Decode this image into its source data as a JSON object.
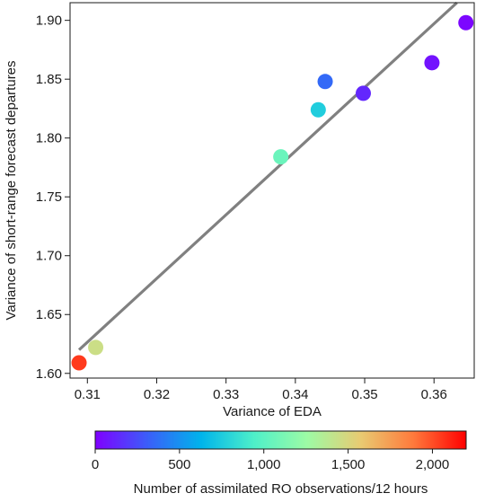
{
  "chart_data": {
    "type": "scatter",
    "xlabel": "Variance of EDA",
    "ylabel": "Variance of short-range forecast departures",
    "xlim": [
      0.3075,
      0.3658
    ],
    "ylim": [
      1.596,
      1.915
    ],
    "x_ticks": [
      0.31,
      0.32,
      0.33,
      0.34,
      0.35,
      0.36
    ],
    "x_tick_labels": [
      "0.31",
      "0.32",
      "0.33",
      "0.34",
      "0.35",
      "0.36"
    ],
    "y_ticks": [
      1.6,
      1.65,
      1.7,
      1.75,
      1.8,
      1.85,
      1.9
    ],
    "y_tick_labels": [
      "1.60",
      "1.65",
      "1.70",
      "1.75",
      "1.80",
      "1.85",
      "1.90"
    ],
    "grid": false,
    "points": [
      {
        "x": 0.3088,
        "y": 1.609,
        "ro_obs": 2050
      },
      {
        "x": 0.3112,
        "y": 1.622,
        "ro_obs": 1450
      },
      {
        "x": 0.3379,
        "y": 1.784,
        "ro_obs": 1060
      },
      {
        "x": 0.3433,
        "y": 1.824,
        "ro_obs": 760
      },
      {
        "x": 0.3443,
        "y": 1.848,
        "ro_obs": 350
      },
      {
        "x": 0.3498,
        "y": 1.838,
        "ro_obs": 130
      },
      {
        "x": 0.3597,
        "y": 1.864,
        "ro_obs": 60
      },
      {
        "x": 0.3646,
        "y": 1.898,
        "ro_obs": 20
      }
    ],
    "fit_line": {
      "x": [
        0.3088,
        0.3633
      ],
      "y": [
        1.62,
        1.915
      ],
      "color": "#808080"
    },
    "colorbar": {
      "label": "Number of assimilated RO observations/12 hours",
      "range": [
        0,
        2200
      ],
      "ticks": [
        0,
        500,
        1000,
        1500,
        2000
      ],
      "tick_labels": [
        "0",
        "500",
        "1,000",
        "1,500",
        "2,000"
      ],
      "colormap": "rainbow",
      "colors": [
        "#8000ff",
        "#3a5ff9",
        "#00b4eb",
        "#4ef0c9",
        "#9dfba5",
        "#e8cb72",
        "#ff7a3c",
        "#ff0000"
      ]
    }
  }
}
